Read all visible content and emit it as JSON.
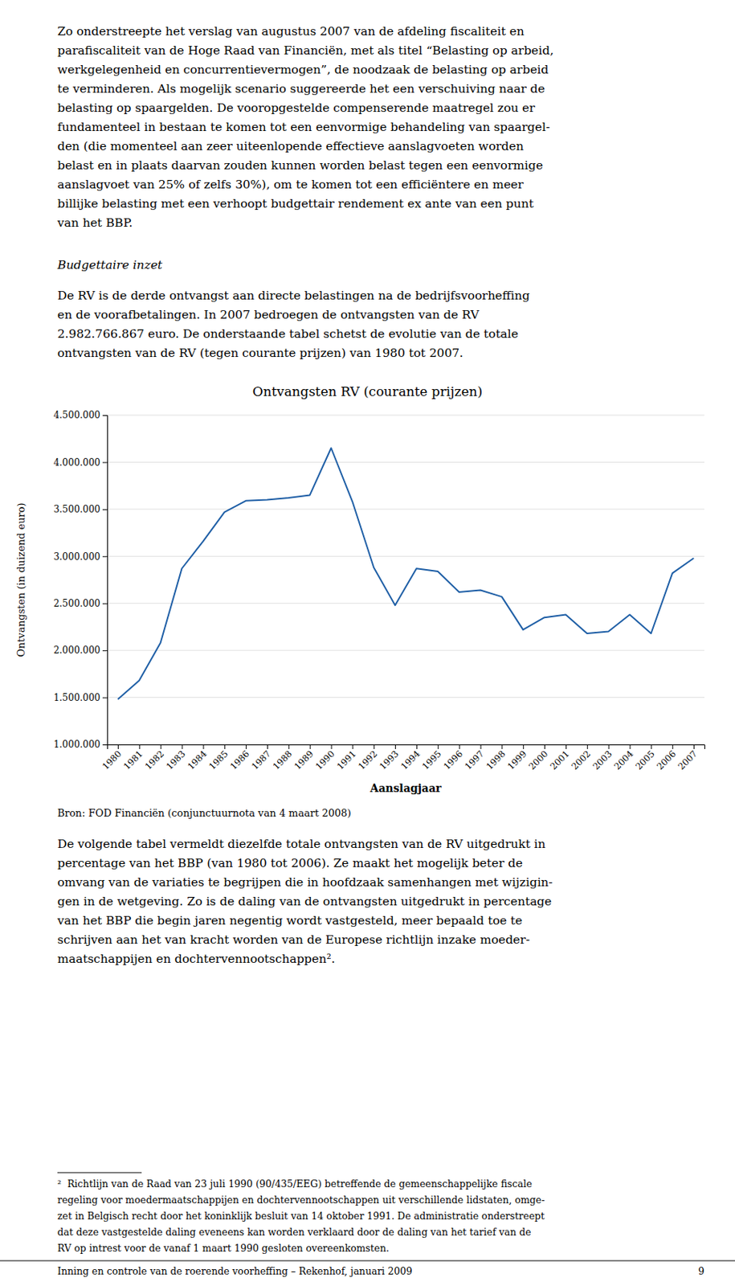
{
  "chart_data": {
    "type": "line",
    "title": "Ontvangsten RV (courante prijzen)",
    "x_label": "Aanslagjaar",
    "y_label": "Ontvangsten (in duizend euro)",
    "source": "Bron: FOD Financiën (conjunctuurnota van 4 maart 2008)",
    "x": [
      1980,
      1981,
      1982,
      1983,
      1984,
      1985,
      1986,
      1987,
      1988,
      1989,
      1990,
      1991,
      1992,
      1993,
      1994,
      1995,
      1996,
      1997,
      1998,
      1999,
      2000,
      2001,
      2002,
      2003,
      2004,
      2005,
      2006,
      2007
    ],
    "values": [
      1480000,
      1680000,
      2080000,
      2870000,
      3160000,
      3470000,
      3590000,
      3600000,
      3620000,
      3650000,
      4150000,
      3580000,
      2880000,
      2480000,
      2870000,
      2840000,
      2620000,
      2640000,
      2570000,
      2220000,
      2350000,
      2380000,
      2180000,
      2200000,
      2380000,
      2180000,
      2820000,
      2980000
    ],
    "color": "#1F5FA6",
    "xlim": [
      1979.5,
      2007.5
    ],
    "xticks": [
      1980,
      1981,
      1982,
      1983,
      1984,
      1985,
      1986,
      1987,
      1988,
      1989,
      1990,
      1991,
      1992,
      1993,
      1994,
      1995,
      1996,
      1997,
      1998,
      1999,
      2000,
      2001,
      2002,
      2003,
      2004,
      2005,
      2006,
      2007
    ],
    "ylim": [
      1000000,
      4500000
    ],
    "yticks": [
      {
        "value": 1000000,
        "label": "1.000.000"
      },
      {
        "value": 1500000,
        "label": "1.500.000"
      },
      {
        "value": 2000000,
        "label": "2.000.000"
      },
      {
        "value": 2500000,
        "label": "2.500.000"
      },
      {
        "value": 3000000,
        "label": "3.000.000"
      },
      {
        "value": 3500000,
        "label": "3.500.000"
      },
      {
        "value": 4000000,
        "label": "4.000.000"
      },
      {
        "value": 4500000,
        "label": "4.500.000"
      }
    ],
    "grid": true
  },
  "page": {
    "paragraph_1": [
      "Zo onderstreepte het verslag van augustus 2007 van de afdeling fiscaliteit en",
      "parafiscaliteit van de Hoge Raad van Financiën, met als titel “Belasting op arbeid,",
      "werkgelegenheid en concurrentievermogen”, de noodzaak de belasting op arbeid",
      "te verminderen. Als mogelijk scenario suggereerde het een verschuiving naar de",
      "belasting op spaargelden. De vooropgestelde compenserende maatregel zou er",
      "fundamenteel in bestaan te komen tot een eenvormige behandeling van spaargel-",
      "den (die momenteel aan zeer uiteenlopende effectieve aanslagvoeten worden",
      "belast en in plaats daarvan zouden kunnen worden belast tegen een eenvormige",
      "aanslagvoet van 25% of zelfs 30%), om te komen tot een efficiëntere en meer",
      "billijke belasting met een verhoopt budgettair rendement ex ante van een punt",
      "van het BBP."
    ],
    "heading": "Budgettaire inzet",
    "paragraph_2": [
      "De RV is de derde ontvangst aan directe belastingen na de bedrijfsvoorheffing",
      "en de voorafbetalingen. In 2007 bedroegen de ontvangsten van de RV",
      "2.982.766.867 euro. De onderstaande tabel schetst de evolutie van de totale",
      "ontvangsten van de RV (tegen courante prijzen) van 1980 tot 2007."
    ],
    "paragraph_3": [
      "De volgende tabel vermeldt diezelfde totale ontvangsten van de RV uitgedrukt in",
      "percentage van het BBP (van 1980 tot 2006). Ze maakt het mogelijk beter de",
      "omvang van de variaties te begrijpen die in hoofdzaak samenhangen met wijzigin-",
      "gen in de wetgeving. Zo is de daling van de ontvangsten uitgedrukt in percentage",
      "van het BBP die begin jaren negentig wordt vastgesteld, meer bepaald toe te",
      "schrijven aan het van kracht worden van de Europese richtlijn inzake moeder-",
      "maatschappijen en dochtervennootschappen²."
    ],
    "footnote": [
      "²  Richtlijn van de Raad van 23 juli 1990 (90/435/EEG) betreffende de gemeenschappelijke fiscale",
      "regeling voor moedermaatschappijen en dochtervennootschappen uit verschillende lidstaten, omge-",
      "zet in Belgisch recht door het koninklijk besluit van 14 oktober 1991. De administratie onderstreept",
      "dat deze vastgestelde daling eveneens kan worden verklaard door de daling van het tarief van de",
      "RV op intrest voor de vanaf 1 maart 1990 gesloten overeenkomsten."
    ],
    "footer": "Inning en controle van de roerende voorheffing – Rekenhof, januari 2009",
    "page_number": "9"
  }
}
